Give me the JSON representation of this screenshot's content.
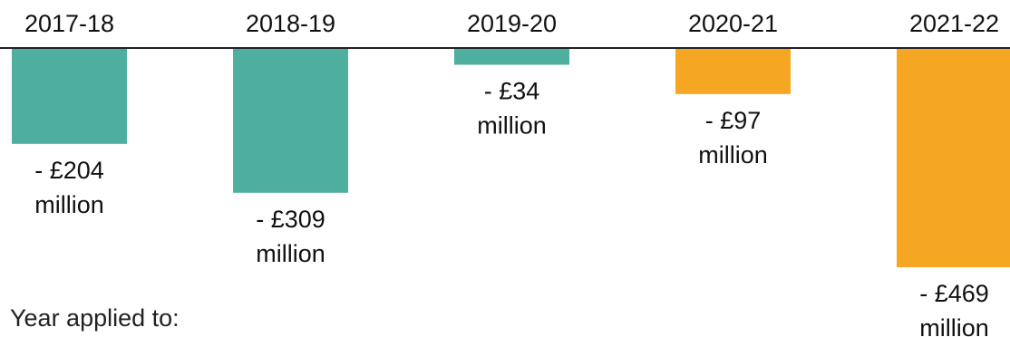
{
  "chart_data": {
    "type": "bar",
    "title": "",
    "xlabel": "",
    "ylabel": "",
    "categories": [
      "2017-18",
      "2018-19",
      "2019-20",
      "2020-21",
      "2021-22"
    ],
    "values": [
      -204,
      -309,
      -34,
      -97,
      -469
    ],
    "value_labels": [
      [
        "- £204",
        "million"
      ],
      [
        "- £309",
        "million"
      ],
      [
        "- £34",
        "million"
      ],
      [
        "- £97",
        "million"
      ],
      [
        "- £469",
        "million"
      ]
    ],
    "unit": "£ million",
    "ylim": [
      -469,
      0
    ],
    "grid": false,
    "legend": "none",
    "colors": [
      "#4eae9f",
      "#4eae9f",
      "#4eae9f",
      "#f5a623",
      "#f5a623"
    ]
  },
  "footer": {
    "label": "Year applied to:"
  }
}
